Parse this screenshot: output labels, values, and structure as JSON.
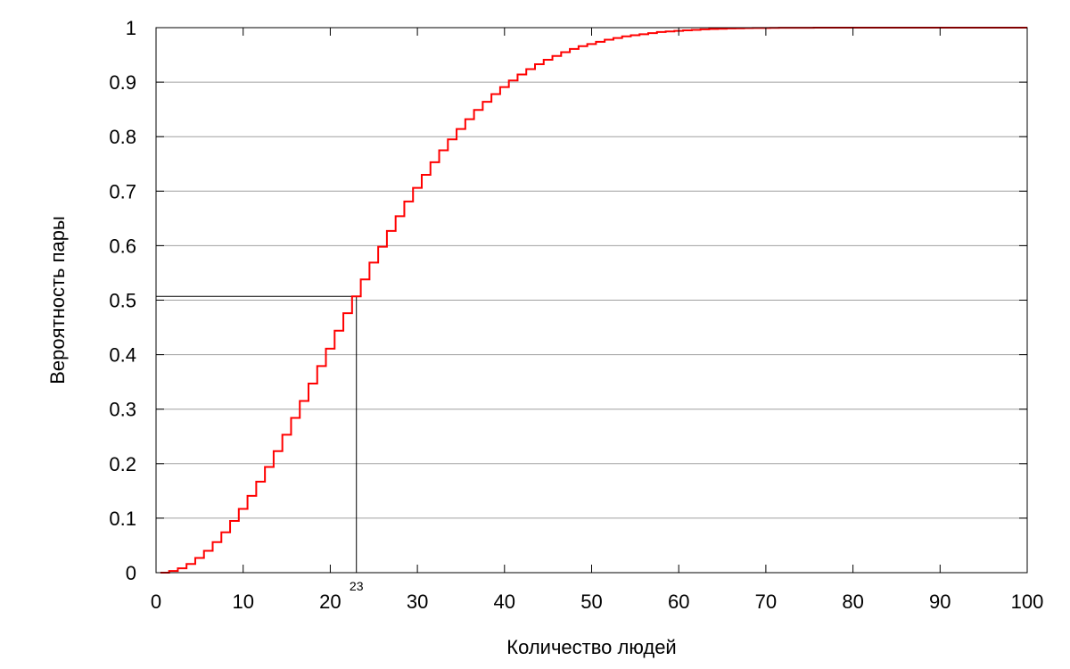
{
  "chart_data": {
    "type": "line",
    "step": true,
    "title": "",
    "xlabel": "Количество людей",
    "ylabel": "Вероятность пары",
    "xlim": [
      0,
      100
    ],
    "ylim": [
      0,
      1
    ],
    "x_ticks": [
      0,
      10,
      20,
      30,
      40,
      50,
      60,
      70,
      80,
      90,
      100
    ],
    "x_tick_labels": [
      "0",
      "10",
      "20",
      "30",
      "40",
      "50",
      "60",
      "70",
      "80",
      "90",
      "100"
    ],
    "y_ticks": [
      0,
      0.1,
      0.2,
      0.3,
      0.4,
      0.5,
      0.6,
      0.7,
      0.8,
      0.9,
      1
    ],
    "y_tick_labels": [
      "0",
      "0.1",
      "0.2",
      "0.3",
      "0.4",
      "0.5",
      "0.6",
      "0.7",
      "0.8",
      "0.9",
      "1"
    ],
    "grid": "horizontal",
    "series": [
      {
        "color": "#ff0000",
        "x": [
          1,
          2,
          3,
          4,
          5,
          6,
          7,
          8,
          9,
          10,
          11,
          12,
          13,
          14,
          15,
          16,
          17,
          18,
          19,
          20,
          21,
          22,
          23,
          24,
          25,
          26,
          27,
          28,
          29,
          30,
          31,
          32,
          33,
          34,
          35,
          36,
          37,
          38,
          39,
          40,
          41,
          42,
          43,
          44,
          45,
          46,
          47,
          48,
          49,
          50,
          51,
          52,
          53,
          54,
          55,
          56,
          57,
          58,
          59,
          60,
          61,
          62,
          63,
          64,
          65,
          66,
          67,
          68,
          69,
          70,
          71,
          72,
          73,
          74,
          75,
          76,
          77,
          78,
          79,
          80,
          81,
          82,
          83,
          84,
          85,
          86,
          87,
          88,
          89,
          90,
          91,
          92,
          93,
          94,
          95,
          96,
          97,
          98,
          99,
          100
        ],
        "values": [
          0,
          0.003,
          0.008,
          0.016,
          0.027,
          0.04,
          0.056,
          0.074,
          0.095,
          0.117,
          0.141,
          0.167,
          0.194,
          0.223,
          0.253,
          0.284,
          0.315,
          0.347,
          0.379,
          0.411,
          0.444,
          0.476,
          0.507,
          0.538,
          0.569,
          0.598,
          0.627,
          0.654,
          0.681,
          0.706,
          0.73,
          0.753,
          0.775,
          0.795,
          0.814,
          0.832,
          0.849,
          0.864,
          0.878,
          0.891,
          0.903,
          0.914,
          0.924,
          0.933,
          0.941,
          0.948,
          0.955,
          0.961,
          0.966,
          0.97,
          0.974,
          0.978,
          0.981,
          0.984,
          0.986,
          0.988,
          0.99,
          0.992,
          0.993,
          0.994,
          0.995,
          0.996,
          0.997,
          0.9975,
          0.998,
          0.9985,
          0.9988,
          0.9991,
          0.9993,
          0.9994,
          0.9996,
          0.9997,
          0.9997,
          0.9998,
          0.9998,
          0.9999,
          0.9999,
          0.9999,
          0.9999,
          0.9999,
          1,
          1,
          1,
          1,
          1,
          1,
          1,
          1,
          1,
          1,
          1,
          1,
          1,
          1,
          1,
          1,
          1,
          1,
          1,
          1
        ]
      }
    ],
    "annotations": [
      {
        "type": "reference-lines",
        "x": 23,
        "y": 0.507,
        "label": "23"
      }
    ]
  }
}
